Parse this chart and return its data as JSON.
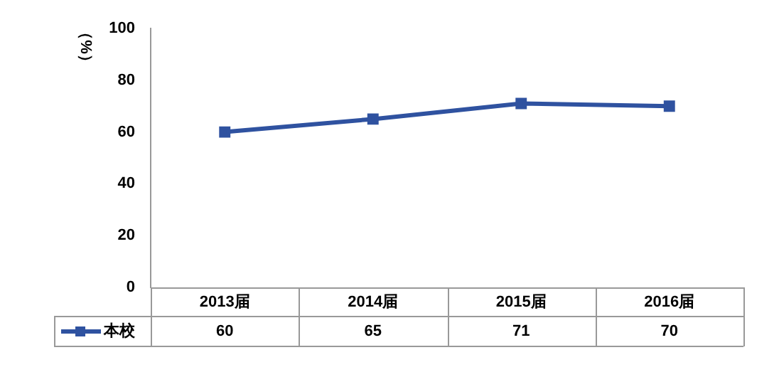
{
  "chart_data": {
    "type": "line",
    "ylabel": "（%）",
    "categories": [
      "2013届",
      "2014届",
      "2015届",
      "2016届"
    ],
    "series": [
      {
        "name": "本校",
        "color": "#2f52a0",
        "values": [
          60,
          65,
          71,
          70
        ]
      }
    ],
    "ylim": [
      0,
      100
    ],
    "yticks": [
      0,
      20,
      40,
      60,
      80,
      100
    ],
    "grid": false,
    "legend": "bottom left",
    "marker": "square",
    "line_style": "solid",
    "data_labels": true
  }
}
